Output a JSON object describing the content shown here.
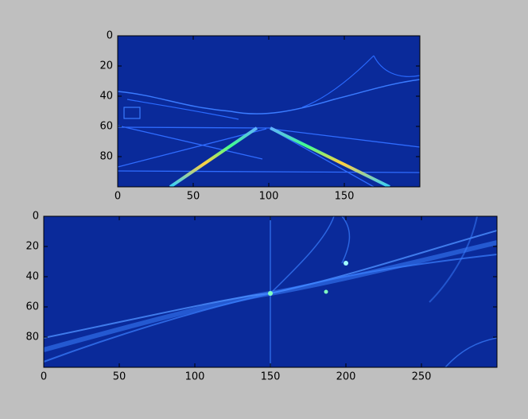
{
  "chart_data": [
    {
      "type": "image",
      "xlim": [
        0,
        200
      ],
      "ylim": [
        100,
        0
      ],
      "xticks": [
        0,
        50,
        100,
        150
      ],
      "yticks": [
        0,
        20,
        40,
        60,
        80
      ]
    },
    {
      "type": "image",
      "xlim": [
        0,
        300
      ],
      "ylim": [
        100,
        0
      ],
      "xticks": [
        0,
        50,
        100,
        150,
        200,
        250
      ],
      "yticks": [
        0,
        20,
        40,
        60,
        80
      ]
    }
  ]
}
